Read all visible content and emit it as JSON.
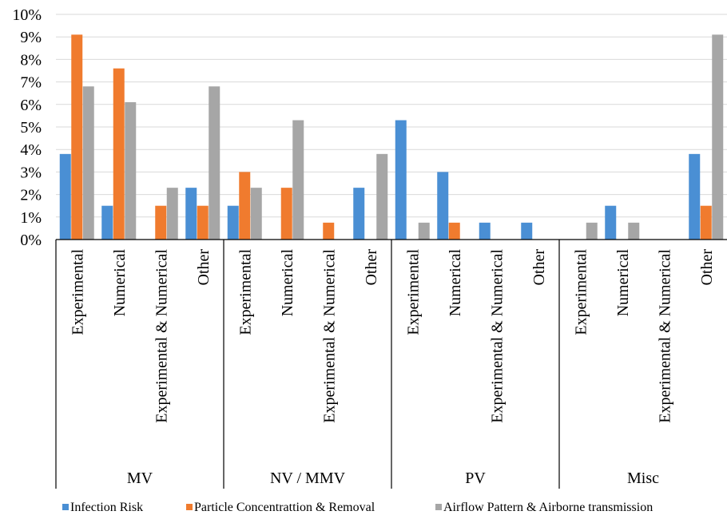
{
  "chart_data": {
    "type": "bar",
    "y_ticks": [
      "0%",
      "1%",
      "2%",
      "3%",
      "4%",
      "5%",
      "6%",
      "7%",
      "8%",
      "9%",
      "10%"
    ],
    "ylim": [
      0,
      10
    ],
    "grid": true,
    "legend_position": "bottom",
    "groups": [
      {
        "name": "MV",
        "categories": [
          "Experimental",
          "Numerical",
          "Experimental & Numerical",
          "Other"
        ]
      },
      {
        "name": "NV / MMV",
        "categories": [
          "Experimental",
          "Numerical",
          "Experimental & Numerical",
          "Other"
        ]
      },
      {
        "name": "PV",
        "categories": [
          "Experimental",
          "Numerical",
          "Experimental & Numerical",
          "Other"
        ]
      },
      {
        "name": "Misc",
        "categories": [
          "Experimental",
          "Numerical",
          "Experimental & Numerical",
          "Other"
        ]
      }
    ],
    "series": [
      {
        "name": "Infection Risk",
        "color": "#4a8fd4",
        "values": [
          3.8,
          1.5,
          0,
          2.3,
          1.5,
          0,
          0,
          2.3,
          5.3,
          3.0,
          0.75,
          0.75,
          0,
          1.5,
          0,
          3.8
        ]
      },
      {
        "name": "Particle Concentrattion & Removal",
        "color": "#f07b2e",
        "values": [
          9.1,
          7.6,
          1.5,
          1.5,
          3.0,
          2.3,
          0.75,
          0,
          0,
          0.75,
          0,
          0,
          0,
          0,
          0,
          1.5
        ]
      },
      {
        "name": "Airflow Pattern & Airborne transmission",
        "color": "#a6a6a6",
        "values": [
          6.8,
          6.1,
          2.3,
          6.8,
          2.3,
          5.3,
          0,
          3.8,
          0.75,
          0,
          0,
          0,
          0.75,
          0.75,
          0,
          9.1
        ]
      }
    ]
  }
}
